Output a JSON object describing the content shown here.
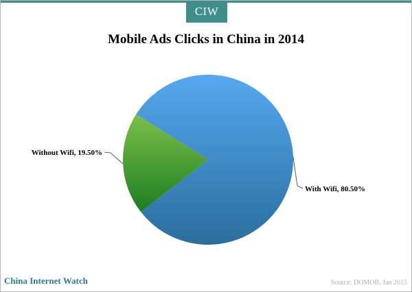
{
  "header": {
    "logo_text": "CIW"
  },
  "footer": {
    "brand": "China Internet Watch",
    "source": "Source: DOMOB, Jan 2015"
  },
  "colors": {
    "brand": "#3e8e8c",
    "footer_brand": "#2b7c92"
  },
  "chart_data": {
    "type": "pie",
    "title": "Mobile Ads Clicks in China in 2014",
    "slices": [
      {
        "label": "With Wifi",
        "value": 80.5,
        "display": "With Wifi, 80.50%",
        "color_start": "#56a8f0",
        "color_end": "#2a6e9c"
      },
      {
        "label": "Without Wifi",
        "value": 19.5,
        "display": "Without Wifi, 19.50%",
        "color_start": "#7bc04a",
        "color_end": "#1c7d20"
      }
    ],
    "legend": "none"
  }
}
